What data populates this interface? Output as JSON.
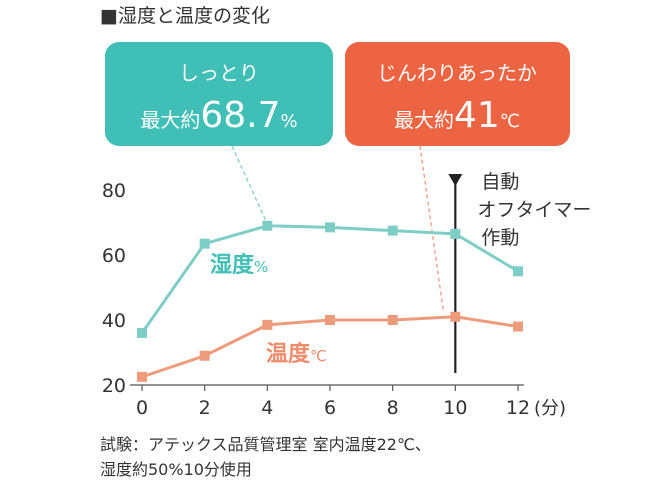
{
  "figure_title": "■湿度と温度の変化",
  "callouts": {
    "humidity": {
      "line1": "しっとり",
      "prefix": "最大約",
      "value": "68.7",
      "unit": "%",
      "color": "#3fbfb6"
    },
    "temperature": {
      "line1": "じんわりあったか",
      "prefix": "最大約",
      "value": "41",
      "unit": "℃",
      "color": "#ec6441"
    }
  },
  "annotation": {
    "lines": [
      "自動",
      "オフタイマー",
      "作動"
    ],
    "x": 10
  },
  "footnote": {
    "line1": "試験：アテックス品質管理室 室内温度22℃、",
    "line2": "湿度約50%10分使用"
  },
  "chart_data": {
    "type": "line",
    "x": [
      0,
      2,
      4,
      6,
      8,
      10,
      12
    ],
    "x_tick_labels": [
      "0",
      "2",
      "4",
      "6",
      "8",
      "10",
      "12"
    ],
    "x_unit": "(分)",
    "y_ticks": [
      20,
      40,
      60,
      80
    ],
    "xlim": [
      0,
      12
    ],
    "ylim": [
      20,
      80
    ],
    "grid": false,
    "series": [
      {
        "name": "湿度",
        "unit": "%",
        "color": "#7fcdc7",
        "label_color": "#3fbfb6",
        "values": [
          36,
          63.5,
          69,
          68.5,
          67.5,
          66.5,
          55
        ]
      },
      {
        "name": "温度",
        "unit": "℃",
        "color": "#ee9b7c",
        "label_color": "#ee8b6a",
        "values": [
          22.5,
          29,
          38.5,
          40,
          40,
          41,
          38
        ]
      }
    ]
  }
}
